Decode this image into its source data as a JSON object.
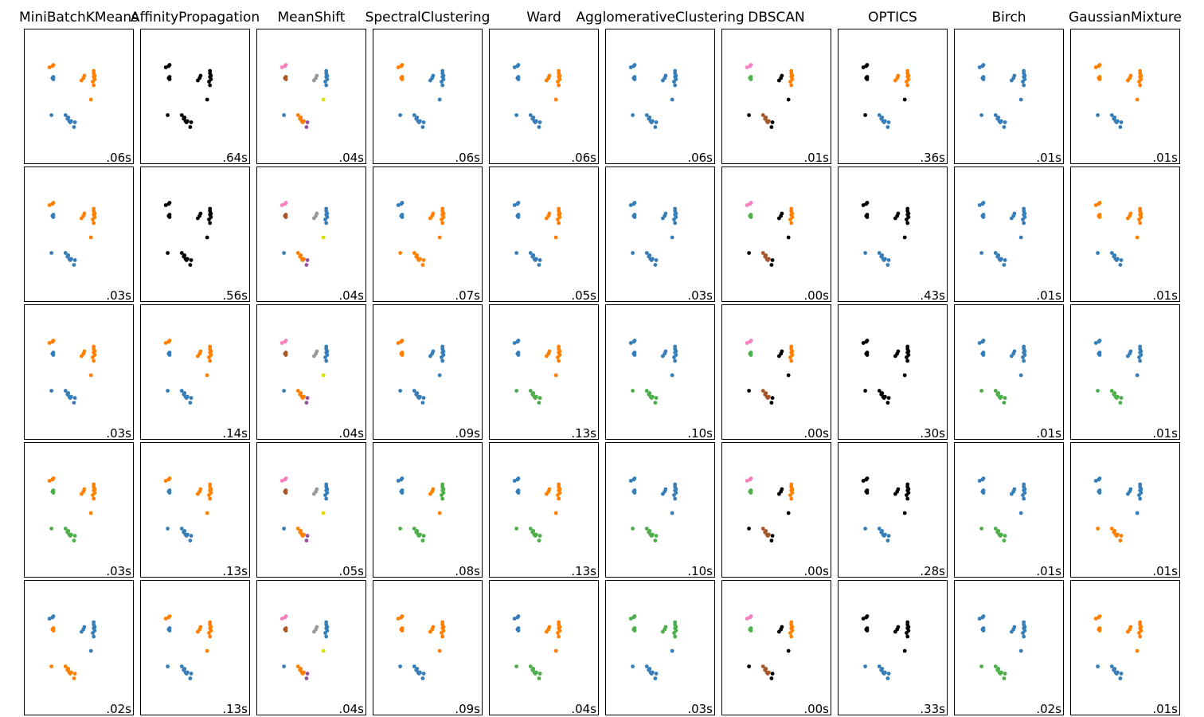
{
  "palette": {
    "blue": "#377eb8",
    "orange": "#ff7f00",
    "green": "#4daf4a",
    "pink": "#f781bf",
    "brown": "#a65628",
    "purple": "#984ea3",
    "grey": "#999999",
    "red": "#e41a1c",
    "yellow": "#dede00",
    "black": "#000000"
  },
  "chart_data": {
    "type": "scatter",
    "xlim": [
      0,
      10
    ],
    "ylim": [
      0,
      10
    ],
    "methods": [
      "MiniBatchKMeans",
      "AffinityPropagation",
      "MeanShift",
      "SpectralClustering",
      "Ward",
      "AgglomerativeClustering",
      "DBSCAN",
      "OPTICS",
      "Birch",
      "GaussianMixture"
    ],
    "groups": {
      "A": [
        [
          1.8,
          7.5
        ],
        [
          2.1,
          7.6
        ],
        [
          2.2,
          7.7
        ]
      ],
      "B": [
        [
          2.2,
          6.5
        ],
        [
          2.2,
          6.7
        ],
        [
          2.1,
          6.6
        ]
      ],
      "C": [
        [
          5.2,
          6.4
        ],
        [
          5.4,
          6.6
        ],
        [
          5.5,
          6.8
        ]
      ],
      "D": [
        [
          6.5,
          7.2
        ],
        [
          6.5,
          7.0
        ],
        [
          6.5,
          6.7
        ],
        [
          6.6,
          6.5
        ],
        [
          6.4,
          6.3
        ],
        [
          6.5,
          6.0
        ],
        [
          6.6,
          6.8
        ]
      ],
      "E": [
        [
          6.2,
          4.8
        ]
      ],
      "F": [
        [
          2.0,
          3.5
        ]
      ],
      "G": [
        [
          3.5,
          3.5
        ],
        [
          3.8,
          3.3
        ],
        [
          3.9,
          3.0
        ],
        [
          4.0,
          2.9
        ],
        [
          4.1,
          3.0
        ],
        [
          3.7,
          3.2
        ]
      ],
      "H": [
        [
          4.5,
          2.9
        ],
        [
          4.4,
          2.5
        ]
      ]
    },
    "rows": [
      {
        "times": [
          ".06s",
          ".64s",
          ".04s",
          ".06s",
          ".06s",
          ".06s",
          ".01s",
          ".36s",
          ".01s",
          ".01s"
        ],
        "colors": [
          {
            "A": "orange",
            "B": "blue",
            "C": "orange",
            "D": "orange",
            "E": "orange",
            "F": "blue",
            "G": "blue",
            "H": "blue"
          },
          {
            "A": "black",
            "B": "black",
            "C": "black",
            "D": "black",
            "E": "black",
            "F": "black",
            "G": "black",
            "H": "black"
          },
          {
            "A": "pink",
            "B": "brown",
            "C": "grey",
            "D": "blue",
            "E": "yellow",
            "F": "blue",
            "G": "orange",
            "H": "purple"
          },
          {
            "A": "orange",
            "B": "orange",
            "C": "blue",
            "D": "blue",
            "E": "blue",
            "F": "blue",
            "G": "blue",
            "H": "blue"
          },
          {
            "A": "blue",
            "B": "blue",
            "C": "orange",
            "D": "orange",
            "E": "orange",
            "F": "blue",
            "G": "blue",
            "H": "blue"
          },
          {
            "A": "blue",
            "B": "blue",
            "C": "blue",
            "D": "blue",
            "E": "blue",
            "F": "blue",
            "G": "blue",
            "H": "blue"
          },
          {
            "A": "pink",
            "B": "green",
            "C": "black",
            "D": "orange",
            "E": "black",
            "F": "black",
            "G": "brown",
            "H": "black"
          },
          {
            "A": "black",
            "B": "black",
            "C": "orange",
            "D": "orange",
            "E": "black",
            "F": "black",
            "G": "blue",
            "H": "blue"
          },
          {
            "A": "blue",
            "B": "blue",
            "C": "blue",
            "D": "blue",
            "E": "blue",
            "F": "blue",
            "G": "blue",
            "H": "blue"
          },
          {
            "A": "orange",
            "B": "orange",
            "C": "orange",
            "D": "orange",
            "E": "orange",
            "F": "blue",
            "G": "blue",
            "H": "blue"
          }
        ]
      },
      {
        "times": [
          ".03s",
          ".56s",
          ".04s",
          ".07s",
          ".05s",
          ".03s",
          ".00s",
          ".43s",
          ".01s",
          ".01s"
        ],
        "colors": [
          {
            "A": "orange",
            "B": "blue",
            "C": "orange",
            "D": "orange",
            "E": "orange",
            "F": "blue",
            "G": "blue",
            "H": "blue"
          },
          {
            "A": "black",
            "B": "black",
            "C": "black",
            "D": "black",
            "E": "black",
            "F": "black",
            "G": "black",
            "H": "black"
          },
          {
            "A": "pink",
            "B": "brown",
            "C": "grey",
            "D": "blue",
            "E": "yellow",
            "F": "blue",
            "G": "orange",
            "H": "purple"
          },
          {
            "A": "blue",
            "B": "blue",
            "C": "orange",
            "D": "orange",
            "E": "orange",
            "F": "orange",
            "G": "orange",
            "H": "orange"
          },
          {
            "A": "blue",
            "B": "blue",
            "C": "orange",
            "D": "orange",
            "E": "orange",
            "F": "blue",
            "G": "blue",
            "H": "blue"
          },
          {
            "A": "blue",
            "B": "blue",
            "C": "blue",
            "D": "blue",
            "E": "blue",
            "F": "blue",
            "G": "blue",
            "H": "blue"
          },
          {
            "A": "pink",
            "B": "green",
            "C": "black",
            "D": "orange",
            "E": "black",
            "F": "black",
            "G": "brown",
            "H": "black"
          },
          {
            "A": "black",
            "B": "black",
            "C": "black",
            "D": "black",
            "E": "black",
            "F": "blue",
            "G": "blue",
            "H": "blue"
          },
          {
            "A": "blue",
            "B": "blue",
            "C": "blue",
            "D": "blue",
            "E": "blue",
            "F": "blue",
            "G": "blue",
            "H": "blue"
          },
          {
            "A": "orange",
            "B": "orange",
            "C": "orange",
            "D": "orange",
            "E": "orange",
            "F": "blue",
            "G": "blue",
            "H": "blue"
          }
        ]
      },
      {
        "times": [
          ".03s",
          ".14s",
          ".04s",
          ".09s",
          ".13s",
          ".10s",
          ".00s",
          ".30s",
          ".01s",
          ".01s"
        ],
        "colors": [
          {
            "A": "orange",
            "B": "blue",
            "C": "orange",
            "D": "orange",
            "E": "orange",
            "F": "blue",
            "G": "blue",
            "H": "blue"
          },
          {
            "A": "orange",
            "B": "blue",
            "C": "orange",
            "D": "orange",
            "E": "orange",
            "F": "blue",
            "G": "blue",
            "H": "blue"
          },
          {
            "A": "pink",
            "B": "brown",
            "C": "grey",
            "D": "blue",
            "E": "yellow",
            "F": "blue",
            "G": "orange",
            "H": "purple"
          },
          {
            "A": "orange",
            "B": "orange",
            "C": "blue",
            "D": "blue",
            "E": "blue",
            "F": "blue",
            "G": "blue",
            "H": "blue"
          },
          {
            "A": "blue",
            "B": "blue",
            "C": "orange",
            "D": "orange",
            "E": "orange",
            "F": "green",
            "G": "green",
            "H": "green"
          },
          {
            "A": "blue",
            "B": "blue",
            "C": "blue",
            "D": "blue",
            "E": "blue",
            "F": "green",
            "G": "green",
            "H": "green"
          },
          {
            "A": "pink",
            "B": "green",
            "C": "black",
            "D": "orange",
            "E": "black",
            "F": "black",
            "G": "brown",
            "H": "black"
          },
          {
            "A": "black",
            "B": "black",
            "C": "black",
            "D": "black",
            "E": "black",
            "F": "black",
            "G": "black",
            "H": "black"
          },
          {
            "A": "blue",
            "B": "blue",
            "C": "blue",
            "D": "blue",
            "E": "blue",
            "F": "green",
            "G": "green",
            "H": "green"
          },
          {
            "A": "blue",
            "B": "blue",
            "C": "blue",
            "D": "blue",
            "E": "blue",
            "F": "green",
            "G": "green",
            "H": "green"
          }
        ]
      },
      {
        "times": [
          ".03s",
          ".13s",
          ".05s",
          ".08s",
          ".13s",
          ".10s",
          ".00s",
          ".28s",
          ".01s",
          ".01s"
        ],
        "colors": [
          {
            "A": "orange",
            "B": "green",
            "C": "orange",
            "D": "orange",
            "E": "orange",
            "F": "green",
            "G": "green",
            "H": "green"
          },
          {
            "A": "orange",
            "B": "blue",
            "C": "orange",
            "D": "orange",
            "E": "orange",
            "F": "blue",
            "G": "blue",
            "H": "blue"
          },
          {
            "A": "pink",
            "B": "brown",
            "C": "grey",
            "D": "blue",
            "E": "yellow",
            "F": "blue",
            "G": "orange",
            "H": "purple"
          },
          {
            "A": "blue",
            "B": "blue",
            "C": "orange",
            "D": "green",
            "E": "orange",
            "F": "green",
            "G": "green",
            "H": "green"
          },
          {
            "A": "blue",
            "B": "blue",
            "C": "orange",
            "D": "orange",
            "E": "orange",
            "F": "green",
            "G": "green",
            "H": "green"
          },
          {
            "A": "blue",
            "B": "blue",
            "C": "blue",
            "D": "blue",
            "E": "blue",
            "F": "green",
            "G": "green",
            "H": "green"
          },
          {
            "A": "pink",
            "B": "green",
            "C": "black",
            "D": "orange",
            "E": "black",
            "F": "black",
            "G": "brown",
            "H": "black"
          },
          {
            "A": "black",
            "B": "black",
            "C": "black",
            "D": "black",
            "E": "black",
            "F": "blue",
            "G": "blue",
            "H": "blue"
          },
          {
            "A": "blue",
            "B": "blue",
            "C": "blue",
            "D": "blue",
            "E": "blue",
            "F": "green",
            "G": "green",
            "H": "green"
          },
          {
            "A": "blue",
            "B": "blue",
            "C": "blue",
            "D": "blue",
            "E": "blue",
            "F": "orange",
            "G": "orange",
            "H": "orange"
          }
        ]
      },
      {
        "times": [
          ".02s",
          ".13s",
          ".04s",
          ".09s",
          ".04s",
          ".03s",
          ".00s",
          ".33s",
          ".02s",
          ".01s"
        ],
        "colors": [
          {
            "A": "blue",
            "B": "orange",
            "C": "blue",
            "D": "blue",
            "E": "blue",
            "F": "orange",
            "G": "orange",
            "H": "orange"
          },
          {
            "A": "orange",
            "B": "blue",
            "C": "orange",
            "D": "orange",
            "E": "orange",
            "F": "blue",
            "G": "blue",
            "H": "blue"
          },
          {
            "A": "pink",
            "B": "brown",
            "C": "grey",
            "D": "blue",
            "E": "yellow",
            "F": "blue",
            "G": "orange",
            "H": "purple"
          },
          {
            "A": "orange",
            "B": "orange",
            "C": "orange",
            "D": "orange",
            "E": "orange",
            "F": "blue",
            "G": "blue",
            "H": "blue"
          },
          {
            "A": "blue",
            "B": "blue",
            "C": "orange",
            "D": "orange",
            "E": "orange",
            "F": "green",
            "G": "green",
            "H": "green"
          },
          {
            "A": "green",
            "B": "green",
            "C": "green",
            "D": "green",
            "E": "blue",
            "F": "blue",
            "G": "blue",
            "H": "blue"
          },
          {
            "A": "pink",
            "B": "green",
            "C": "black",
            "D": "orange",
            "E": "black",
            "F": "black",
            "G": "brown",
            "H": "black"
          },
          {
            "A": "black",
            "B": "black",
            "C": "black",
            "D": "black",
            "E": "black",
            "F": "blue",
            "G": "blue",
            "H": "blue"
          },
          {
            "A": "blue",
            "B": "blue",
            "C": "blue",
            "D": "blue",
            "E": "blue",
            "F": "green",
            "G": "green",
            "H": "green"
          },
          {
            "A": "orange",
            "B": "orange",
            "C": "orange",
            "D": "orange",
            "E": "orange",
            "F": "blue",
            "G": "blue",
            "H": "blue"
          }
        ]
      }
    ]
  }
}
